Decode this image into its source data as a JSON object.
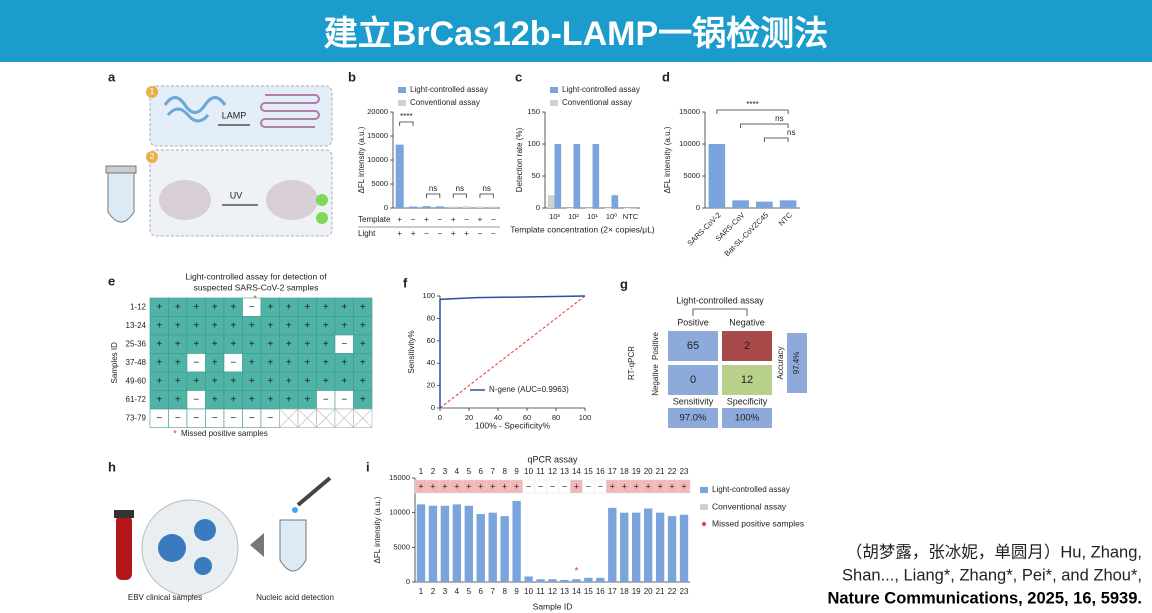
{
  "header": {
    "title": "建立BrCas12b-LAMP一锅检测法"
  },
  "panels": {
    "labels": [
      "a",
      "b",
      "c",
      "d",
      "e",
      "f",
      "g",
      "h",
      "i"
    ]
  },
  "schematic": {
    "step_labels": [
      "1",
      "2"
    ],
    "lamp": "LAMP",
    "uv": "UV"
  },
  "chart_data": [
    {
      "type": "bar",
      "categories": [
        null,
        null,
        null,
        null,
        null,
        null,
        null,
        null
      ],
      "series": [
        {
          "name": "Light-controlled assay",
          "color": "#7ba4dc",
          "values": [
            13200,
            300,
            400,
            350,
            null,
            null,
            null,
            null
          ]
        },
        {
          "name": "Conventional assay",
          "color": "#d0d0d0",
          "values": [
            null,
            null,
            null,
            null,
            300,
            350,
            300,
            300
          ]
        }
      ],
      "ylim": [
        0,
        20000
      ],
      "yticks": [
        0,
        5000,
        10000,
        15000,
        20000
      ],
      "y_label": "ΔFL intensity (a.u.)",
      "row_labels": [
        "Template",
        "Light"
      ],
      "template": [
        "+",
        "−",
        "+",
        "−",
        "+",
        "−",
        "+",
        "−"
      ],
      "light": [
        "+",
        "+",
        "−",
        "−",
        "+",
        "+",
        "−",
        "−"
      ],
      "annotations": [
        "****",
        "ns",
        "ns",
        "ns"
      ]
    },
    {
      "type": "bar",
      "categories": [
        "10³",
        "10²",
        "10¹",
        "10⁰",
        "NTC"
      ],
      "series": [
        {
          "name": "Light-controlled assay",
          "color": "#7ba4dc",
          "values": [
            100,
            100,
            100,
            20,
            0
          ]
        },
        {
          "name": "Conventional assay",
          "color": "#d0d0d0",
          "values": [
            20,
            0,
            0,
            0,
            0
          ]
        }
      ],
      "ylim": [
        0,
        150
      ],
      "yticks": [
        0,
        50,
        100,
        150
      ],
      "y_label": "Detection rate (%)",
      "x_label": "Template concentration (2× copies/μL)"
    },
    {
      "type": "bar",
      "categories": [
        "SARS-CoV-2",
        "SARS-CoV",
        "Bat-SL-CoVZC45",
        "NTC"
      ],
      "series": [
        {
          "name": "Light-controlled assay",
          "color": "#7ba4dc",
          "values": [
            10000,
            1200,
            1000,
            1200
          ]
        }
      ],
      "ylim": [
        0,
        15000
      ],
      "yticks": [
        0,
        5000,
        10000,
        15000
      ],
      "y_label": "ΔFL intensity (a.u.)",
      "annotations": [
        "****",
        "ns",
        "ns"
      ]
    },
    {
      "type": "line",
      "x": [
        0,
        0,
        25,
        100
      ],
      "series": [
        {
          "name": "N-gene (AUC=0.9963)",
          "color": "#2e4f9e",
          "values": [
            0,
            97,
            98.5,
            100
          ]
        }
      ],
      "xlim": [
        0,
        100
      ],
      "xticks": [
        0,
        20,
        40,
        60,
        80,
        100
      ],
      "ylim": [
        0,
        100
      ],
      "yticks": [
        0,
        20,
        40,
        60,
        80,
        100
      ],
      "x_label": "100% - Specificity%",
      "y_label": "Sensitivity%"
    },
    {
      "type": "bar",
      "title": "qPCR assay",
      "categories": [
        "1",
        "2",
        "3",
        "4",
        "5",
        "6",
        "7",
        "8",
        "9",
        "10",
        "11",
        "12",
        "13",
        "14",
        "15",
        "16",
        "17",
        "18",
        "19",
        "20",
        "21",
        "22",
        "23"
      ],
      "results": [
        "+",
        "+",
        "+",
        "+",
        "+",
        "+",
        "+",
        "+",
        "+",
        "−",
        "−",
        "−",
        "−",
        "+",
        "−",
        "−",
        "+",
        "+",
        "+",
        "+",
        "+",
        "+",
        "+"
      ],
      "series": [
        {
          "name": "Light-controlled assay",
          "color": "#7ba4dc",
          "values": [
            11200,
            11000,
            11000,
            11200,
            11000,
            9800,
            10000,
            9500,
            11700,
            800,
            400,
            400,
            300,
            400,
            600,
            600,
            10700,
            10000,
            10000,
            10600,
            10000,
            9500,
            9700
          ]
        }
      ],
      "legend": [
        {
          "name": "Conventional assay",
          "color": "#d0d0d0"
        },
        {
          "name": "Missed positive samples",
          "color": "#e53935"
        }
      ],
      "ylim": [
        0,
        15000
      ],
      "yticks": [
        0,
        5000,
        10000,
        15000
      ],
      "y_label": "ΔFL intensity (a.u.)",
      "x_label": "Sample ID"
    }
  ],
  "grid_e": {
    "title_lines": [
      "Light-controlled assay for detection of",
      "suspected SARS-CoV-2 samples"
    ],
    "y_label": "Samples ID",
    "row_labels": [
      "1-12",
      "13-24",
      "25-36",
      "37-48",
      "49-60",
      "61-72",
      "73-79"
    ],
    "cells": [
      [
        "+",
        "+",
        "+",
        "+",
        "+",
        "−",
        "+",
        "+",
        "+",
        "+",
        "+",
        "+"
      ],
      [
        "+",
        "+",
        "+",
        "+",
        "+",
        "+",
        "+",
        "+",
        "+",
        "+",
        "+",
        "+"
      ],
      [
        "+",
        "+",
        "+",
        "+",
        "+",
        "+",
        "+",
        "+",
        "+",
        "+",
        "−",
        "+"
      ],
      [
        "+",
        "+",
        "−",
        "+",
        "−",
        "+",
        "+",
        "+",
        "+",
        "+",
        "+",
        "+"
      ],
      [
        "+",
        "+",
        "+",
        "+",
        "+",
        "+",
        "+",
        "+",
        "+",
        "+",
        "+",
        "+"
      ],
      [
        "+",
        "+",
        "−",
        "+",
        "+",
        "+",
        "+",
        "+",
        "+",
        "−",
        "−",
        "+"
      ],
      [
        "−",
        "−",
        "−",
        "−",
        "−",
        "−",
        "−",
        null,
        null,
        null,
        null,
        null
      ]
    ],
    "legend": "Missed positive samples"
  },
  "matrix_g": {
    "column_title": "Light-controlled assay",
    "columns": [
      "Positive",
      "Negative"
    ],
    "row_title": "RT-qPCR",
    "rows": [
      "Positive",
      "Negative"
    ],
    "matrix": [
      [
        65,
        2
      ],
      [
        0,
        12
      ]
    ],
    "bottom_labels": [
      "Sensitivity",
      "Specificity"
    ],
    "bottom_values": [
      "97.0%",
      "100%"
    ],
    "side_label": "Accuracy",
    "side_value": "97.4%"
  },
  "schematic_h": {
    "labels": [
      "EBV clinical samples",
      "Nucleic acid detection"
    ]
  },
  "citation": {
    "lines": [
      "（胡梦露，张冰妮，单圆月）Hu, Zhang,",
      "Shan..., Liang*, Zhang*, Pei*, and Zhou*,",
      "Nature Communications, 2025, 16, 5939."
    ]
  }
}
